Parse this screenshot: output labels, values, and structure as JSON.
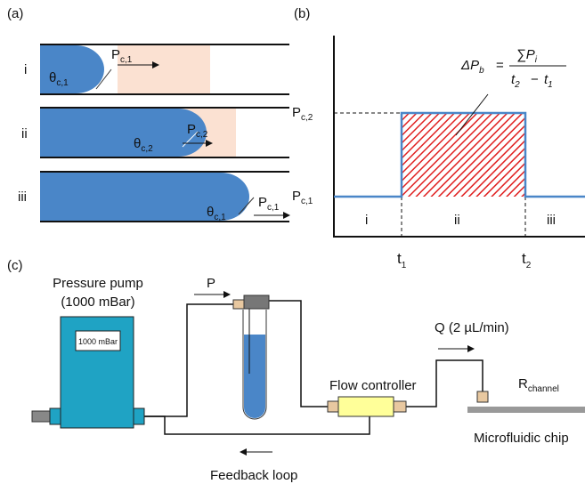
{
  "panel_labels": [
    "(a)",
    "(b)",
    "(c)"
  ],
  "panel_a": {
    "rows": [
      {
        "label": "i",
        "angle": {
          "base": "θ",
          "sub": "c,1"
        },
        "pressure": {
          "base": "P",
          "sub": "c,1"
        }
      },
      {
        "label": "ii",
        "angle": {
          "base": "θ",
          "sub": "c,2"
        },
        "pressure": {
          "base": "P",
          "sub": "c,2"
        }
      },
      {
        "label": "iii",
        "angle": {
          "base": "θ",
          "sub": "c,1"
        },
        "pressure": {
          "base": "P",
          "sub": "c,1"
        }
      }
    ]
  },
  "panel_b": {
    "y_labels": [
      {
        "base": "P",
        "sub": "c,2"
      },
      {
        "base": "P",
        "sub": "c,1"
      }
    ],
    "x_labels": [
      {
        "base": "t",
        "sub": "1"
      },
      {
        "base": "t",
        "sub": "2"
      }
    ],
    "regions": [
      "i",
      "ii",
      "iii"
    ],
    "formula": {
      "lhs": {
        "base": "ΔP",
        "sub": "b"
      },
      "equals": "=",
      "numerator": {
        "base": "∑P",
        "sub": "i"
      },
      "denominator": {
        "first": {
          "base": "t",
          "sub": "2"
        },
        "minus": "−",
        "second": {
          "base": "t",
          "sub": "1"
        }
      }
    }
  },
  "panel_c": {
    "pump_title": "Pressure pump",
    "pump_setting": "(1000 mBar)",
    "pump_display": "1000 mBar",
    "pressure_label": "P",
    "flow_label": "Q  (2 µL/min)",
    "flow_controller": "Flow controller",
    "resistance": {
      "base": "R",
      "sub": "channel"
    },
    "chip": "Microfluidic chip",
    "feedback": "Feedback loop"
  }
}
